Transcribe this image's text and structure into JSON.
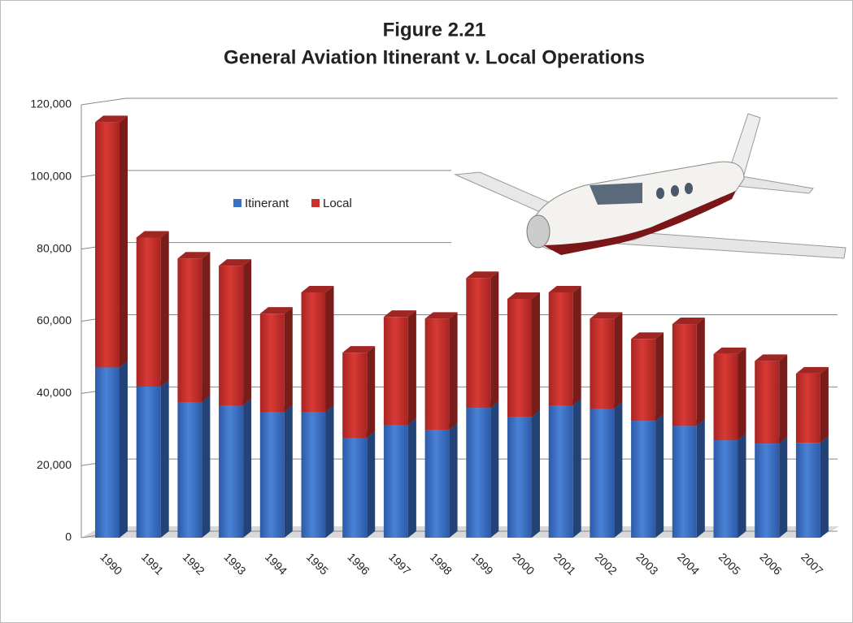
{
  "chart_data": {
    "type": "bar",
    "stacked": true,
    "title": "Figure 2.21",
    "subtitle": "General Aviation Itinerant v. Local Operations",
    "categories": [
      "1990",
      "1991",
      "1992",
      "1993",
      "1994",
      "1995",
      "1996",
      "1997",
      "1998",
      "1999",
      "2000",
      "2001",
      "2002",
      "2003",
      "2004",
      "2005",
      "2006",
      "2007"
    ],
    "series": [
      {
        "name": "Itinerant",
        "color": "#3b70c4",
        "values": [
          47200,
          41900,
          37600,
          36700,
          34900,
          34900,
          27700,
          31300,
          29900,
          36000,
          33500,
          36700,
          35800,
          32400,
          31000,
          27000,
          26100,
          26300
        ]
      },
      {
        "name": "Local",
        "color": "#c8302c",
        "values": [
          68000,
          41300,
          39800,
          38700,
          27200,
          33100,
          23600,
          29900,
          30800,
          36000,
          32700,
          31300,
          24900,
          22700,
          28200,
          23900,
          22900,
          19200
        ]
      }
    ],
    "ylim": [
      0,
      120000
    ],
    "yticks": [
      0,
      {
        "value": 20000,
        "label": "20,000"
      },
      {
        "value": 40000,
        "label": "40,000"
      },
      {
        "value": 60000,
        "label": "60,000"
      },
      {
        "value": 80000,
        "label": "80,000"
      },
      {
        "value": 100000,
        "label": "100,000"
      },
      {
        "value": 120000,
        "label": "120,000"
      }
    ],
    "grid": true
  }
}
